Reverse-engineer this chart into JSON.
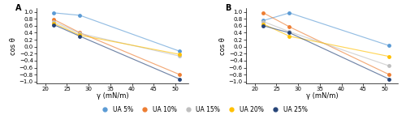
{
  "panel_A": {
    "series": {
      "UA 5%": {
        "x": [
          22,
          28,
          51
        ],
        "y": [
          0.97,
          0.9,
          -0.13
        ],
        "color": "#5B9BD5",
        "marker": "o"
      },
      "UA 10%": {
        "x": [
          22,
          28,
          51
        ],
        "y": [
          0.78,
          0.4,
          -0.8
        ],
        "color": "#ED7D31",
        "marker": "o"
      },
      "UA 15%": {
        "x": [
          22,
          28,
          51
        ],
        "y": [
          0.72,
          0.38,
          -0.27
        ],
        "color": "#BFBFBF",
        "marker": "o"
      },
      "UA 20%": {
        "x": [
          22,
          28,
          51
        ],
        "y": [
          0.67,
          0.33,
          -0.22
        ],
        "color": "#FFC000",
        "marker": "o"
      },
      "UA 25%": {
        "x": [
          22,
          28,
          51
        ],
        "y": [
          0.63,
          0.3,
          -0.93
        ],
        "color": "#264478",
        "marker": "o"
      }
    }
  },
  "panel_B": {
    "series": {
      "UA 5%": {
        "x": [
          22,
          28,
          51
        ],
        "y": [
          0.75,
          0.97,
          0.03
        ],
        "color": "#5B9BD5",
        "marker": "o"
      },
      "UA 10%": {
        "x": [
          22,
          28,
          51
        ],
        "y": [
          0.97,
          0.57,
          -0.8
        ],
        "color": "#ED7D31",
        "marker": "o"
      },
      "UA 15%": {
        "x": [
          22,
          28,
          51
        ],
        "y": [
          0.72,
          0.43,
          -0.55
        ],
        "color": "#BFBFBF",
        "marker": "o"
      },
      "UA 20%": {
        "x": [
          22,
          28,
          51
        ],
        "y": [
          0.65,
          0.3,
          -0.28
        ],
        "color": "#FFC000",
        "marker": "o"
      },
      "UA 25%": {
        "x": [
          22,
          28,
          51
        ],
        "y": [
          0.6,
          0.4,
          -0.93
        ],
        "color": "#264478",
        "marker": "o"
      }
    }
  },
  "xlim": [
    18,
    53
  ],
  "ylim": [
    -1.05,
    1.1
  ],
  "xticks": [
    20,
    25,
    30,
    35,
    40,
    45,
    50
  ],
  "yticks": [
    -1,
    -0.8,
    -0.6,
    -0.4,
    -0.2,
    0,
    0.2,
    0.4,
    0.6,
    0.8,
    1
  ],
  "xlabel": "γ (mN/m)",
  "ylabel": "cos θ",
  "marker_size": 3.5,
  "line_width": 0.85,
  "line_alpha": 0.65,
  "legend_labels": [
    "UA 5%",
    "UA 10%",
    "UA 15%",
    "UA 20%",
    "UA 25%"
  ],
  "legend_colors": [
    "#5B9BD5",
    "#ED7D31",
    "#BFBFBF",
    "#FFC000",
    "#264478"
  ],
  "background_color": "#ffffff",
  "tick_fontsize": 5,
  "label_fontsize": 6,
  "legend_fontsize": 5.5
}
